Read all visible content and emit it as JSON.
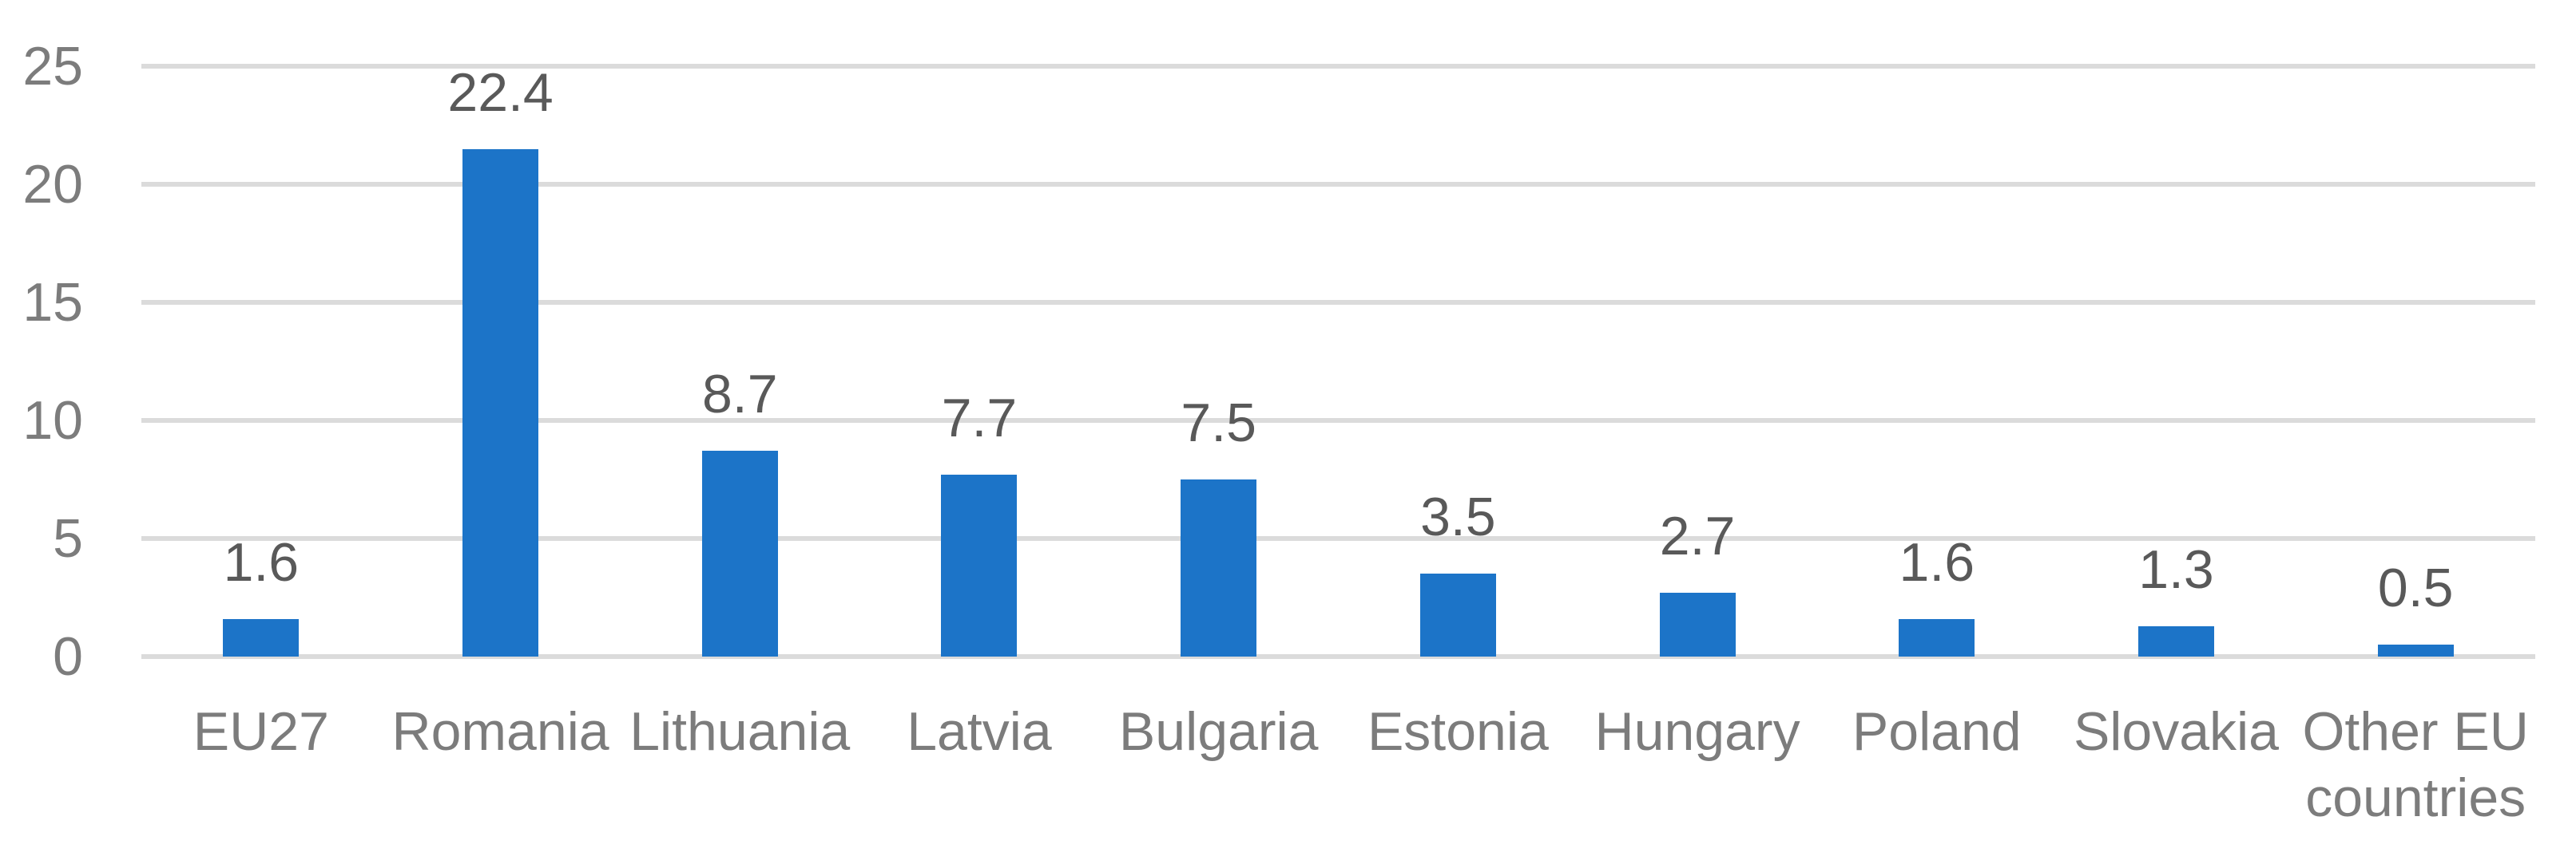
{
  "chart_data": {
    "type": "bar",
    "title": "",
    "xlabel": "",
    "ylabel": "",
    "categories": [
      "EU27",
      "Romania",
      "Lithuania",
      "Latvia",
      "Bulgaria",
      "Estonia",
      "Hungary",
      "Poland",
      "Slovakia",
      "Other EU countries"
    ],
    "values": [
      1.6,
      22.4,
      8.7,
      7.7,
      7.5,
      3.5,
      2.7,
      1.6,
      1.3,
      0.5
    ],
    "value_labels": [
      "1.6",
      "22.4",
      "8.7",
      "7.7",
      "7.5",
      "3.5",
      "2.7",
      "1.6",
      "1.3",
      "0.5"
    ],
    "y_tick_labels": [
      "25",
      "20",
      "15",
      "10",
      "5",
      "0"
    ],
    "ylim": [
      0,
      25
    ],
    "y_tick_step": 5,
    "grid": true,
    "legend": false,
    "data_label_position": "above-bars",
    "colors": {
      "bar": "#1c74c8",
      "gridline": "#dbdbdb",
      "axis_tick_label": "#7c7c7c",
      "data_label": "#595959",
      "background": "#ffffff"
    }
  }
}
